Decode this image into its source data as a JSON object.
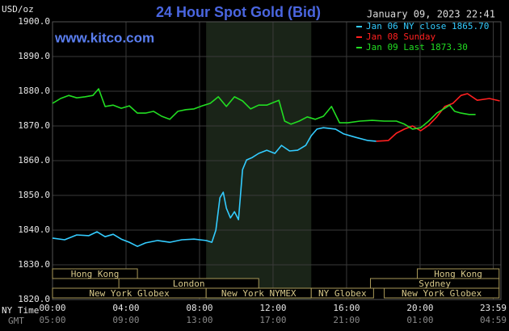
{
  "chart_data": {
    "type": "line",
    "title": "24 Hour Spot Gold (Bid)",
    "website": "www.kitco.com",
    "timestamp": "January 09, 2023 22:41",
    "y_label": "USD/oz",
    "x_label": "NY Time",
    "x2_label": "GMT",
    "xlim": [
      0,
      24.4
    ],
    "ylim": [
      1820,
      1900
    ],
    "yticks": [
      {
        "value": 1820,
        "label": "1820.0"
      },
      {
        "value": 1830,
        "label": "1830.0"
      },
      {
        "value": 1840,
        "label": "1840.0"
      },
      {
        "value": 1850,
        "label": "1850.0"
      },
      {
        "value": 1860,
        "label": "1860.0"
      },
      {
        "value": 1870,
        "label": "1870.0"
      },
      {
        "value": 1880,
        "label": "1880.0"
      },
      {
        "value": 1890,
        "label": "1890.0"
      },
      {
        "value": 1900,
        "label": "1900.0"
      }
    ],
    "xticks": [
      {
        "value": 0,
        "label": "00:00"
      },
      {
        "value": 4,
        "label": "04:00"
      },
      {
        "value": 8,
        "label": "08:00"
      },
      {
        "value": 12,
        "label": "12:00"
      },
      {
        "value": 16,
        "label": "16:00"
      },
      {
        "value": 20,
        "label": "20:00"
      },
      {
        "value": 23.983,
        "label": "23:59"
      }
    ],
    "x2tick_labels": [
      "05:00",
      "09:00",
      "13:00",
      "17:00",
      "21:00",
      "01:00",
      "04:59"
    ],
    "grid": true,
    "highlight": [
      8.36,
      14.08
    ],
    "session_rows": [
      [
        {
          "label": "Hong Kong",
          "start": 0,
          "end": 4.62
        },
        {
          "label": "Hong Kong",
          "start": 19.85,
          "end": 24.3
        }
      ],
      [
        {
          "label": "London",
          "start": 3.61,
          "end": 11.22
        },
        {
          "label": "Sydney",
          "start": 17.3,
          "end": 24.3
        }
      ],
      [
        {
          "label": "New York Globex",
          "start": 0,
          "end": 8.36
        },
        {
          "label": "New York NYMEX",
          "start": 8.36,
          "end": 14.08
        },
        {
          "label": "NY Globex",
          "start": 14.08,
          "end": 17.47
        },
        {
          "label": "New York Globex",
          "start": 18.05,
          "end": 24.3
        }
      ]
    ],
    "series": [
      {
        "name": "Jan 06 NY close 1865.70",
        "color": "#33ccff",
        "x": [
          0,
          0.66,
          1.32,
          1.98,
          2.42,
          2.86,
          3.3,
          3.74,
          4.18,
          4.62,
          5.06,
          5.72,
          6.38,
          7.04,
          7.7,
          8.36,
          8.67,
          8.89,
          9.11,
          9.29,
          9.46,
          9.68,
          9.9,
          10.12,
          10.34,
          10.56,
          10.87,
          11.22,
          11.66,
          12.1,
          12.46,
          12.9,
          13.34,
          13.78,
          14.08,
          14.39,
          14.74,
          15.4,
          15.85,
          16.51,
          17.17,
          17.61
        ],
        "values": [
          1837.7,
          1837.2,
          1838.6,
          1838.4,
          1839.5,
          1838.1,
          1838.8,
          1837.4,
          1836.5,
          1835.3,
          1836.3,
          1837.0,
          1836.5,
          1837.2,
          1837.4,
          1837.0,
          1836.5,
          1840,
          1849.3,
          1850.9,
          1846.3,
          1843.5,
          1845.3,
          1843,
          1857.4,
          1860.2,
          1860.9,
          1862.1,
          1863,
          1862.1,
          1864.4,
          1862.8,
          1863,
          1864.4,
          1867.2,
          1869.1,
          1869.5,
          1869.1,
          1867.7,
          1866.7,
          1865.8,
          1865.6
        ]
      },
      {
        "name": "Jan 08 Sunday",
        "color": "#ff2020",
        "x": [
          17.61,
          18.27,
          18.71,
          19.15,
          19.59,
          20.03,
          20.47,
          20.91,
          21.35,
          21.79,
          22.23,
          22.58,
          23.11,
          23.77,
          24.34
        ],
        "values": [
          1865.6,
          1865.8,
          1867.9,
          1869.1,
          1870,
          1868.6,
          1870.2,
          1872.6,
          1875.6,
          1876.5,
          1878.8,
          1879.3,
          1877.4,
          1877.9,
          1877.2
        ]
      },
      {
        "name": "Jan 09 Last 1873.30",
        "color": "#22dd22",
        "x": [
          0,
          0.44,
          0.88,
          1.32,
          1.76,
          2.2,
          2.51,
          2.86,
          3.3,
          3.74,
          4.18,
          4.62,
          5.06,
          5.5,
          5.94,
          6.38,
          6.82,
          7.26,
          7.7,
          8.14,
          8.58,
          9.02,
          9.46,
          9.9,
          10.34,
          10.78,
          11.22,
          11.66,
          12.32,
          12.63,
          12.98,
          13.42,
          13.86,
          14.3,
          14.74,
          15.18,
          15.62,
          16.07,
          16.73,
          17.39,
          18.05,
          18.71,
          19.15,
          19.59,
          20.03,
          20.47,
          20.91,
          21.35,
          21.61,
          21.88,
          22.23,
          22.67,
          23.02
        ],
        "values": [
          1876.5,
          1877.9,
          1878.8,
          1878.1,
          1878.4,
          1878.8,
          1880.7,
          1875.6,
          1876,
          1875.1,
          1875.8,
          1873.7,
          1873.7,
          1874.2,
          1872.8,
          1871.9,
          1874.2,
          1874.7,
          1874.9,
          1875.8,
          1876.5,
          1878.4,
          1875.6,
          1878.4,
          1877.2,
          1874.9,
          1876,
          1876,
          1877.4,
          1871.4,
          1870.5,
          1871.4,
          1872.6,
          1871.9,
          1872.8,
          1875.6,
          1870.9,
          1870.9,
          1871.4,
          1871.6,
          1871.4,
          1871.4,
          1870.5,
          1869.1,
          1869.5,
          1871.4,
          1873.7,
          1875.1,
          1876,
          1874.2,
          1873.7,
          1873.3,
          1873.3
        ]
      }
    ]
  }
}
